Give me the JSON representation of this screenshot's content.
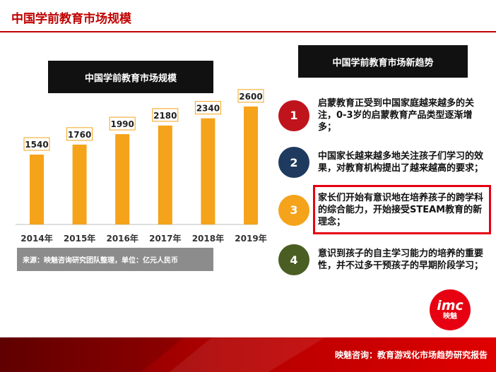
{
  "page": {
    "title": "中国学前教育市场规模"
  },
  "chart_data": {
    "type": "bar",
    "title": "中国学前教育市场规模",
    "categories": [
      "2014年",
      "2015年",
      "2016年",
      "2017年",
      "2018年",
      "2019年"
    ],
    "values": [
      1540,
      1760,
      1990,
      2180,
      2340,
      2600
    ],
    "ylim": [
      0,
      2800
    ],
    "grid": false,
    "bar_color": "#f5a31a",
    "label_border_color": "#f5a31a",
    "source": "来源：映魅咨询研究团队整理，单位：亿元人民币"
  },
  "trends": {
    "title": "中国学前教育市场新趋势",
    "items": [
      {
        "num": "1",
        "text": "启蒙教育正受到中国家庭越来越多的关注，0-3岁的启蒙教育产品类型逐渐增多；",
        "color": "#c0141c"
      },
      {
        "num": "2",
        "text": "中国家长越来越多地关注孩子们学习的效果，对教育机构提出了越来越高的要求；",
        "color": "#1f3a5f"
      },
      {
        "num": "3",
        "text": "家长们开始有意识地在培养孩子的跨学科的综合能力，开始接受STEAM教育的新理念；",
        "color": "#f5a31a"
      },
      {
        "num": "4",
        "text": "意识到孩子的自主学习能力的培养的重要性，并不过多干预孩子的早期阶段学习；",
        "color": "#4a5e23"
      }
    ]
  },
  "logo": {
    "main": "imc",
    "sub": "映魅"
  },
  "footer": {
    "text": "映魅咨询：教育游戏化市场趋势研究报告"
  }
}
